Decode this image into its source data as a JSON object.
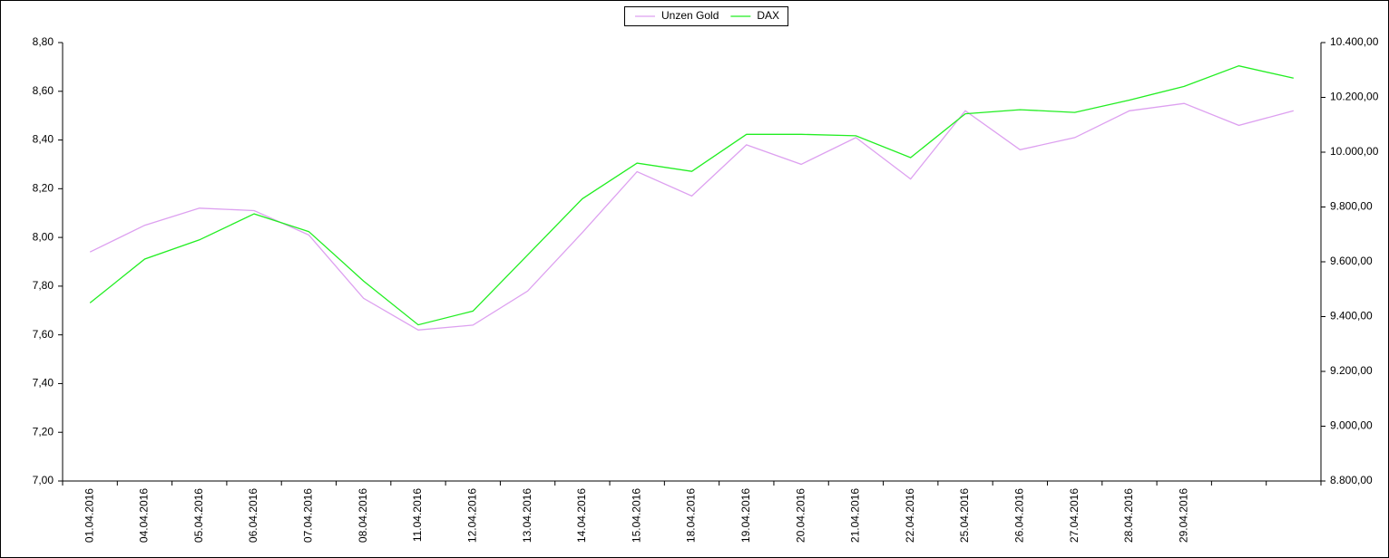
{
  "chart_data": {
    "type": "line",
    "categories": [
      "01.04.2016",
      "04.04.2016",
      "05.04.2016",
      "06.04.2016",
      "07.04.2016",
      "08.04.2016",
      "11.04.2016",
      "12.04.2016",
      "13.04.2016",
      "14.04.2016",
      "15.04.2016",
      "18.04.2016",
      "19.04.2016",
      "20.04.2016",
      "21.04.2016",
      "22.04.2016",
      "25.04.2016",
      "26.04.2016",
      "27.04.2016",
      "28.04.2016",
      "29.04.2016",
      null,
      null
    ],
    "series": [
      {
        "name": "Unzen Gold",
        "color": "#dda0f0",
        "axis": "y",
        "values": [
          7.94,
          8.05,
          8.12,
          8.11,
          8.01,
          7.75,
          7.62,
          7.64,
          7.78,
          8.02,
          8.27,
          8.17,
          8.38,
          8.3,
          8.41,
          8.24,
          8.52,
          8.36,
          8.41,
          8.52,
          8.55,
          8.46,
          8.52
        ]
      },
      {
        "name": "DAX",
        "color": "#22ee22",
        "axis": "y2",
        "values": [
          9450,
          9610,
          9680,
          9775,
          9710,
          9530,
          9370,
          9420,
          9625,
          9830,
          9960,
          9930,
          10065,
          10065,
          10060,
          9980,
          10140,
          10155,
          10145,
          10190,
          10240,
          10315,
          10270
        ]
      }
    ],
    "ylim": [
      7.0,
      8.8
    ],
    "yticks": [
      {
        "value": 7.0,
        "label": "7,00"
      },
      {
        "value": 7.2,
        "label": "7,20"
      },
      {
        "value": 7.4,
        "label": "7,40"
      },
      {
        "value": 7.6,
        "label": "7,60"
      },
      {
        "value": 7.8,
        "label": "7,80"
      },
      {
        "value": 8.0,
        "label": "8,00"
      },
      {
        "value": 8.2,
        "label": "8,20"
      },
      {
        "value": 8.4,
        "label": "8,40"
      },
      {
        "value": 8.6,
        "label": "8,60"
      },
      {
        "value": 8.8,
        "label": "8,80"
      }
    ],
    "y2lim": [
      8800,
      10400
    ],
    "y2ticks": [
      {
        "value": 8800,
        "label": "8.800,00"
      },
      {
        "value": 9000,
        "label": "9.000,00"
      },
      {
        "value": 9200,
        "label": "9.200,00"
      },
      {
        "value": 9400,
        "label": "9.400,00"
      },
      {
        "value": 9600,
        "label": "9.600,00"
      },
      {
        "value": 9800,
        "label": "9.800,00"
      },
      {
        "value": 10000,
        "label": "10.000,00"
      },
      {
        "value": 10200,
        "label": "10.200,00"
      },
      {
        "value": 10400,
        "label": "10.400,00"
      }
    ],
    "legend": "top"
  }
}
